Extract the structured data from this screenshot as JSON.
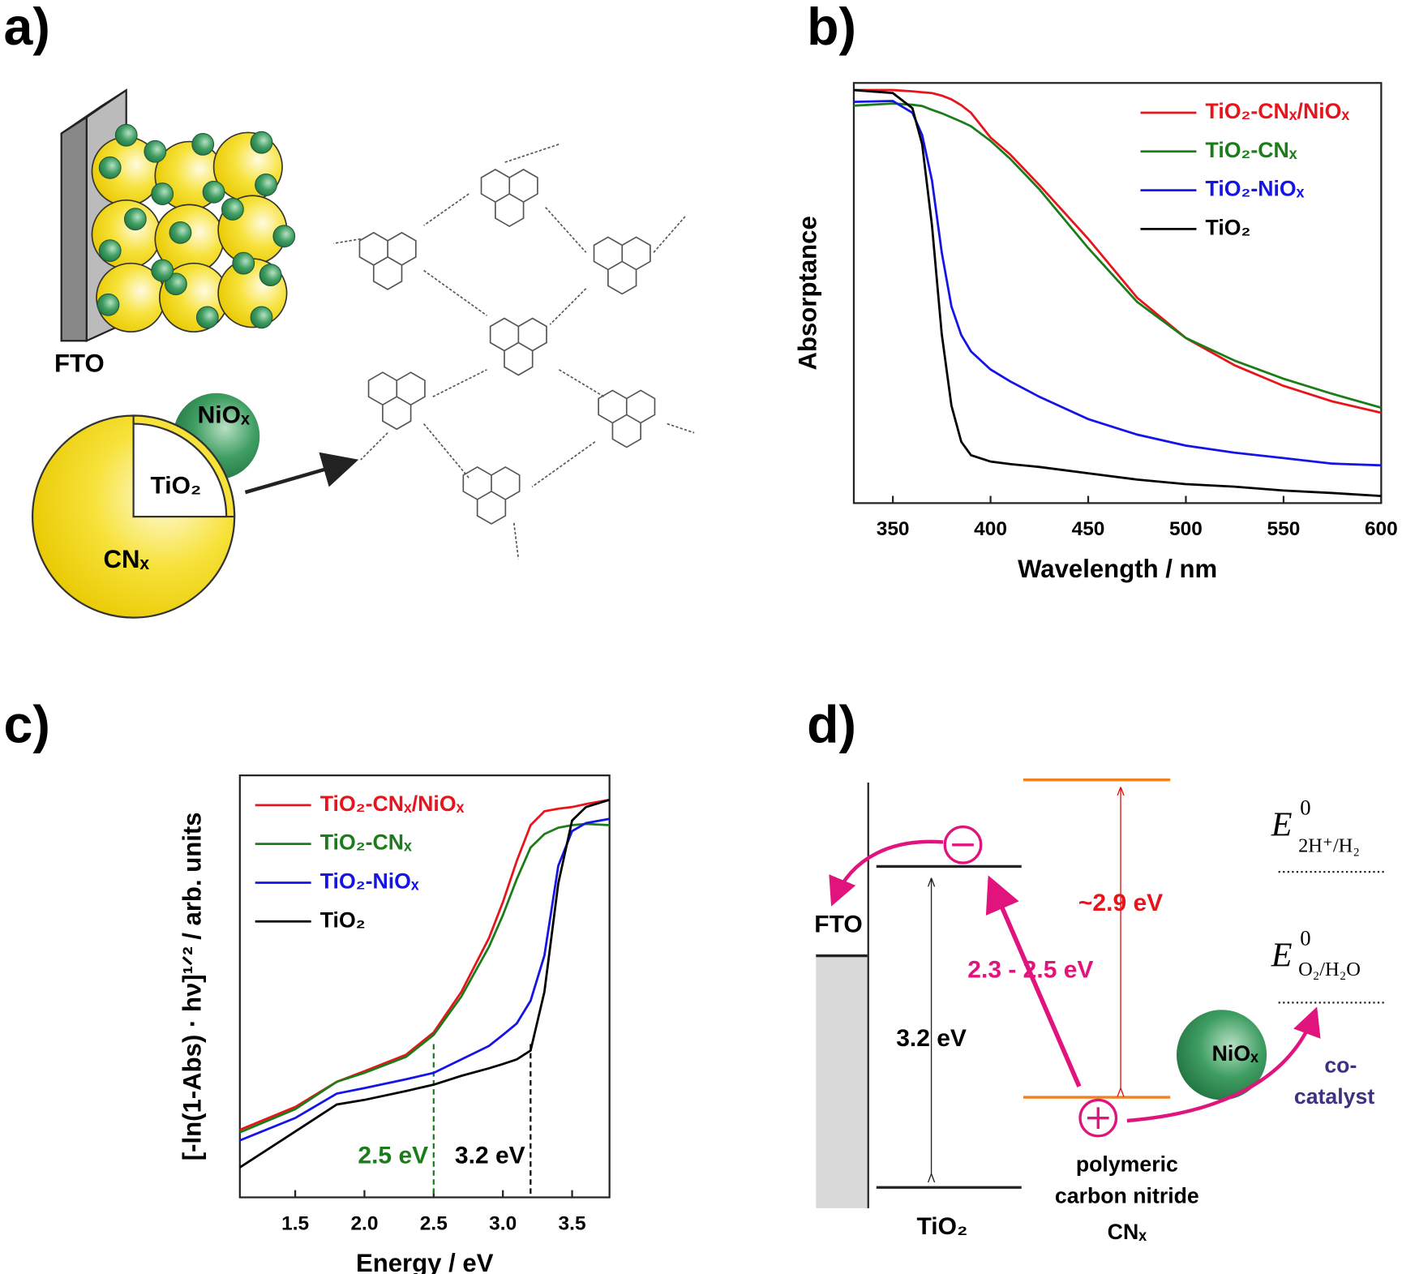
{
  "panel_a": {
    "label": "a)",
    "fto": "FTO",
    "nio": "NiOₓ",
    "tio2": "TiO₂",
    "cn": "CNₓ"
  },
  "chart_data": [
    {
      "type": "line",
      "panel": "b)",
      "x_label": "Wavelength / nm",
      "y_label": "Absorptance",
      "x": [
        330,
        350,
        360,
        365,
        370,
        375,
        380,
        385,
        390,
        400,
        410,
        425,
        450,
        475,
        500,
        525,
        550,
        575,
        600
      ],
      "series": [
        {
          "name": "TiO₂-CNₓ/NiOₓ",
          "color": "#e8141c",
          "values": [
            0.983,
            0.983,
            0.98,
            0.978,
            0.976,
            0.97,
            0.961,
            0.947,
            0.929,
            0.87,
            0.83,
            0.757,
            0.629,
            0.489,
            0.393,
            0.328,
            0.279,
            0.242,
            0.215
          ]
        },
        {
          "name": "TiO₂-CNₓ",
          "color": "#1a7d1a",
          "values": [
            0.946,
            0.951,
            0.948,
            0.945,
            0.936,
            0.928,
            0.918,
            0.908,
            0.897,
            0.862,
            0.82,
            0.747,
            0.607,
            0.479,
            0.393,
            0.339,
            0.296,
            0.26,
            0.227
          ]
        },
        {
          "name": "TiO₂-NiOₓ",
          "color": "#1414e6",
          "values": [
            0.955,
            0.957,
            0.929,
            0.876,
            0.768,
            0.597,
            0.468,
            0.4,
            0.361,
            0.318,
            0.29,
            0.253,
            0.2,
            0.163,
            0.137,
            0.12,
            0.107,
            0.094,
            0.09
          ]
        },
        {
          "name": "TiO₂",
          "color": "#000000",
          "values": [
            0.983,
            0.976,
            0.94,
            0.854,
            0.661,
            0.403,
            0.232,
            0.146,
            0.114,
            0.099,
            0.093,
            0.086,
            0.071,
            0.056,
            0.045,
            0.039,
            0.03,
            0.024,
            0.017
          ]
        }
      ],
      "xlim": [
        330,
        600
      ],
      "ylim": [
        0,
        1
      ],
      "xticks": [
        350,
        400,
        450,
        500,
        550,
        600
      ]
    },
    {
      "type": "line",
      "panel": "c)",
      "x_label": "Energy / eV",
      "y_label": "[-ln(1-Abs) · hν]¹ᐟ² / arb. units",
      "x": [
        1.1,
        1.5,
        1.8,
        2.0,
        2.3,
        2.5,
        2.7,
        2.9,
        3.0,
        3.1,
        3.2,
        3.3,
        3.4,
        3.5,
        3.6,
        3.77
      ],
      "series": [
        {
          "name": "TiO₂-CNₓ/NiOₓ",
          "color": "#e8141c",
          "values": [
            0.16,
            0.214,
            0.274,
            0.299,
            0.338,
            0.391,
            0.487,
            0.615,
            0.7,
            0.797,
            0.882,
            0.915,
            0.921,
            0.925,
            0.932,
            0.942
          ]
        },
        {
          "name": "TiO₂-CNₓ",
          "color": "#1a7d1a",
          "values": [
            0.154,
            0.209,
            0.274,
            0.295,
            0.333,
            0.385,
            0.476,
            0.594,
            0.669,
            0.754,
            0.829,
            0.861,
            0.876,
            0.882,
            0.885,
            0.882
          ]
        },
        {
          "name": "TiO₂-NiOₓ",
          "color": "#1414e6",
          "values": [
            0.135,
            0.188,
            0.246,
            0.259,
            0.28,
            0.295,
            0.327,
            0.359,
            0.385,
            0.412,
            0.466,
            0.573,
            0.786,
            0.868,
            0.887,
            0.897
          ]
        },
        {
          "name": "TiO₂",
          "color": "#000000",
          "values": [
            0.071,
            0.156,
            0.22,
            0.231,
            0.252,
            0.267,
            0.288,
            0.306,
            0.316,
            0.327,
            0.348,
            0.487,
            0.744,
            0.893,
            0.925,
            0.942
          ]
        }
      ],
      "markers": [
        {
          "x": 2.5,
          "label": "2.5 eV",
          "color": "#1a7d1a"
        },
        {
          "x": 3.2,
          "label": "3.2 eV",
          "color": "#000000"
        }
      ],
      "xlim": [
        1.1,
        3.77
      ],
      "ylim": [
        0,
        1
      ],
      "xticks": [
        1.5,
        {
          "value": 2,
          "label": "2.0"
        },
        2.5,
        {
          "value": 3,
          "label": "3.0"
        },
        3.5
      ]
    }
  ],
  "panel_d": {
    "label": "d)",
    "fto": "FTO",
    "tio2": "TiO₂",
    "gap_tio2": "3.2 eV",
    "gap_cn": "~2.9 eV",
    "gap_abs": "2.3 - 2.5 eV",
    "cn_1": "polymeric",
    "cn_2": "carbon nitride",
    "cn_3": "CNₓ",
    "nio": "NiOₓ",
    "cocat_1": "co-",
    "cocat_2": "catalyst",
    "e_h2": {
      "symbol": "E",
      "sup": "0",
      "sub": "2H⁺/H₂"
    },
    "e_o2": {
      "symbol": "E",
      "sup": "0",
      "sub": "O₂/H₂O"
    }
  }
}
